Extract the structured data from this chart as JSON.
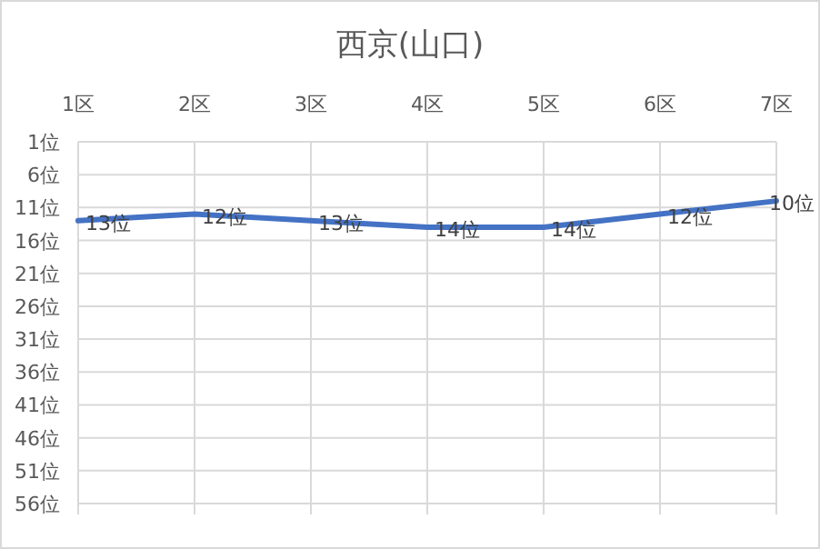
{
  "chart_data": {
    "type": "line",
    "title": "西京(山口)",
    "categories": [
      "1区",
      "2区",
      "3区",
      "4区",
      "5区",
      "6区",
      "7区"
    ],
    "values": [
      13,
      12,
      13,
      14,
      14,
      12,
      10
    ],
    "value_labels": [
      "13位",
      "12位",
      "13位",
      "14位",
      "14位",
      "12位",
      "10位"
    ],
    "color": "#4472c4",
    "ylim": [
      56,
      1
    ],
    "yticks": [
      {
        "value": 1,
        "label": "1位"
      },
      {
        "value": 6,
        "label": "6位"
      },
      {
        "value": 11,
        "label": "11位"
      },
      {
        "value": 16,
        "label": "16位"
      },
      {
        "value": 21,
        "label": "21位"
      },
      {
        "value": 26,
        "label": "26位"
      },
      {
        "value": 31,
        "label": "31位"
      },
      {
        "value": 36,
        "label": "36位"
      },
      {
        "value": 41,
        "label": "41位"
      },
      {
        "value": 46,
        "label": "46位"
      },
      {
        "value": 51,
        "label": "51位"
      },
      {
        "value": 56,
        "label": "56位"
      }
    ],
    "grid": true
  }
}
